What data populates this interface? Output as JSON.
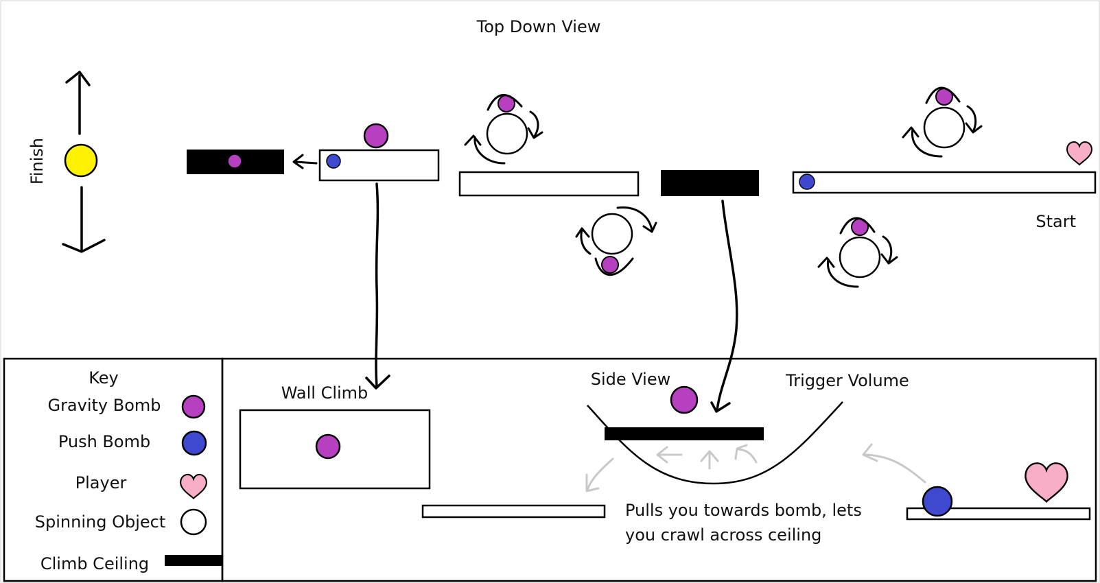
{
  "title": "Top Down View",
  "labels": {
    "finish": "Finish",
    "start": "Start",
    "wall_climb": "Wall Climb",
    "side_view": "Side View",
    "trigger_volume": "Trigger Volume",
    "note_line1": "Pulls you towards bomb, lets",
    "note_line2": "you crawl across ceiling"
  },
  "key": {
    "title": "Key",
    "items": [
      {
        "label": "Gravity Bomb"
      },
      {
        "label": "Push Bomb"
      },
      {
        "label": "Player"
      },
      {
        "label": "Spinning Object"
      },
      {
        "label": "Climb Ceiling"
      }
    ]
  },
  "colors": {
    "gravity_bomb": "#b740c0",
    "push_bomb": "#3f49cf",
    "player": "#f7aec6",
    "finish_orb": "#fff200",
    "ink": "#000000",
    "faint_arrow": "#c8c8c8"
  }
}
